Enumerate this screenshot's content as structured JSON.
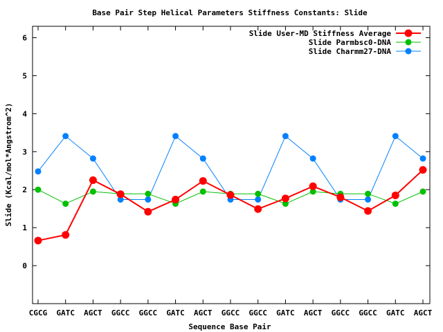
{
  "chart_data": {
    "type": "line",
    "title": "Base Pair Step Helical Parameters Stiffness Constants: Slide",
    "xlabel": "Sequence Base Pair",
    "ylabel": "Slide (Kcal/mol*Angstrom^2)",
    "ylim": [
      -1,
      6.3
    ],
    "yticks": [
      0,
      1,
      2,
      3,
      4,
      5,
      6
    ],
    "categories": [
      "CGCG",
      "GATC",
      "AGCT",
      "GGCC",
      "GGCC",
      "GATC",
      "AGCT",
      "GGCC",
      "GGCC",
      "GATC",
      "AGCT",
      "GGCC",
      "GGCC",
      "GATC",
      "AGCT"
    ],
    "legend_position": "top-right",
    "grid": false,
    "series": [
      {
        "name": "Slide User-MD Stiffness Average",
        "color": "#ff0000",
        "values": [
          0.66,
          0.81,
          2.25,
          1.88,
          1.42,
          1.74,
          2.23,
          1.86,
          1.49,
          1.77,
          2.09,
          1.8,
          1.44,
          1.85,
          2.52
        ]
      },
      {
        "name": "Slide Parmbsc0-DNA",
        "color": "#00c000",
        "values": [
          2.0,
          1.63,
          1.95,
          1.89,
          1.89,
          1.63,
          1.95,
          1.89,
          1.89,
          1.63,
          1.95,
          1.89,
          1.89,
          1.63,
          1.95
        ]
      },
      {
        "name": "Slide Charmm27-DNA",
        "color": "#0080ff",
        "values": [
          2.48,
          3.41,
          2.82,
          1.74,
          1.74,
          3.41,
          2.82,
          1.74,
          1.74,
          3.41,
          2.82,
          1.74,
          1.74,
          3.41,
          2.82
        ]
      }
    ]
  }
}
